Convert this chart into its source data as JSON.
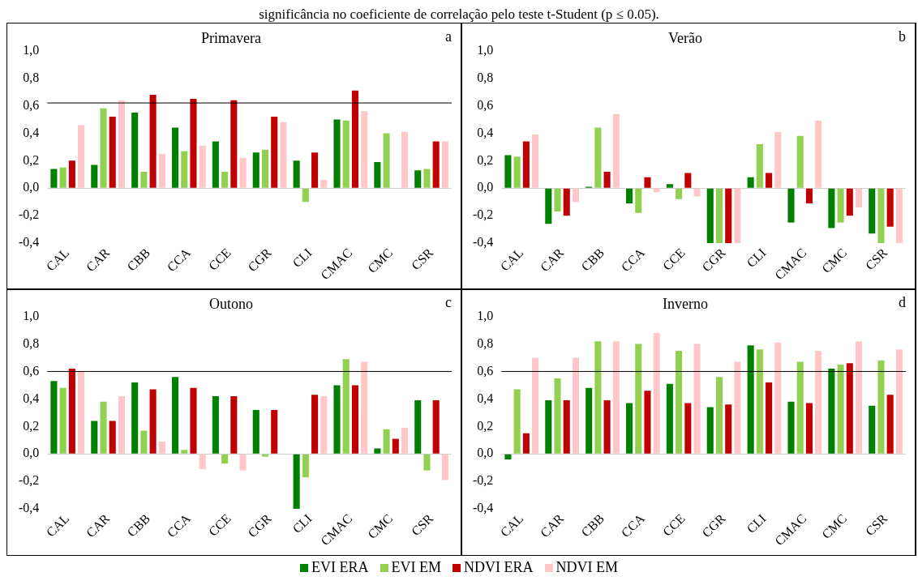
{
  "chart_data": [
    {
      "type": "bar",
      "title": "Primavera",
      "annotations": [
        "a",
        "significância no coeficiente de correlação pelo teste t-Student (p ≤ 0.05)."
      ],
      "categories": [
        "CAL",
        "CAR",
        "CBB",
        "CCA",
        "CCE",
        "CGR",
        "CLI",
        "CMAC",
        "CMC",
        "CSR"
      ],
      "series": [
        {
          "name": "EVI ERA",
          "color": "#008000",
          "values": [
            0.14,
            0.17,
            0.55,
            0.44,
            0.34,
            0.26,
            0.2,
            0.5,
            0.19,
            0.13
          ]
        },
        {
          "name": "EVI EM",
          "color": "#92d050",
          "values": [
            0.15,
            0.58,
            0.12,
            0.27,
            0.12,
            0.28,
            -0.1,
            0.49,
            0.4,
            0.14
          ]
        },
        {
          "name": "NDVI ERA",
          "color": "#c00000",
          "values": [
            0.2,
            0.52,
            0.68,
            0.65,
            0.64,
            0.52,
            0.26,
            0.71,
            null,
            0.34
          ]
        },
        {
          "name": "NDVI EM",
          "color": "#ffc7c7",
          "values": [
            0.46,
            0.64,
            0.25,
            0.31,
            0.22,
            0.48,
            0.06,
            0.56,
            0.41,
            0.34
          ]
        }
      ],
      "ylim": [
        -0.4,
        1.0
      ],
      "yticks": [
        {
          "value": -0.4,
          "label": "-0,4"
        },
        {
          "value": -0.2,
          "label": "-0,2"
        },
        {
          "value": 0,
          "label": "0,0"
        },
        {
          "value": 0.2,
          "label": "0,2"
        },
        {
          "value": 0.4,
          "label": "0,4"
        },
        {
          "value": 0.6,
          "label": "0,6"
        },
        {
          "value": 0.8,
          "label": "0,8"
        },
        {
          "value": 1.0,
          "label": "1,0"
        }
      ],
      "ref_lines": [
        {
          "axis": "y",
          "value": 0.62,
          "color": "#000000"
        }
      ],
      "legend": "bottom"
    },
    {
      "type": "bar",
      "title": "Verão",
      "annotations": [
        "b"
      ],
      "categories": [
        "CAL",
        "CAR",
        "CBB",
        "CCA",
        "CCE",
        "CGR",
        "CLI",
        "CMAC",
        "CMC",
        "CSR"
      ],
      "series": [
        {
          "color": "#008000",
          "values": [
            0.24,
            -0.26,
            0.01,
            -0.11,
            0.03,
            -0.4,
            0.08,
            -0.25,
            -0.29,
            -0.33
          ]
        },
        {
          "color": "#92d050",
          "values": [
            0.23,
            -0.17,
            0.44,
            -0.18,
            -0.08,
            -0.4,
            0.32,
            0.38,
            -0.25,
            -0.4
          ]
        },
        {
          "color": "#c00000",
          "values": [
            0.34,
            -0.2,
            0.12,
            0.08,
            0.11,
            -0.4,
            0.11,
            -0.11,
            -0.2,
            -0.28
          ]
        },
        {
          "color": "#ffc7c7",
          "values": [
            0.39,
            -0.1,
            0.54,
            -0.03,
            -0.06,
            -0.4,
            0.41,
            0.49,
            -0.14,
            -0.4
          ]
        }
      ],
      "ylim": [
        -0.4,
        1.0
      ],
      "yticks": [
        {
          "value": -0.4,
          "label": "-0,4"
        },
        {
          "value": -0.2,
          "label": "-0,2"
        },
        {
          "value": 0,
          "label": "0,0"
        },
        {
          "value": 0.2,
          "label": "0,2"
        },
        {
          "value": 0.4,
          "label": "0,4"
        },
        {
          "value": 0.6,
          "label": "0,6"
        },
        {
          "value": 0.8,
          "label": "0,8"
        },
        {
          "value": 1.0,
          "label": "1,0"
        }
      ]
    },
    {
      "type": "bar",
      "title": "Outono",
      "annotations": [
        "c"
      ],
      "categories": [
        "CAL",
        "CAR",
        "CBB",
        "CCA",
        "CCE",
        "CGR",
        "CLI",
        "CMAC",
        "CMC",
        "CSR"
      ],
      "series": [
        {
          "color": "#008000",
          "values": [
            0.53,
            0.24,
            0.52,
            0.56,
            0.42,
            0.32,
            -0.4,
            0.5,
            0.04,
            0.39
          ]
        },
        {
          "color": "#92d050",
          "values": [
            0.48,
            0.38,
            0.17,
            0.03,
            -0.07,
            -0.02,
            -0.17,
            0.69,
            0.18,
            -0.12
          ]
        },
        {
          "color": "#c00000",
          "values": [
            0.62,
            0.24,
            0.47,
            0.48,
            0.42,
            0.32,
            0.43,
            0.5,
            0.11,
            0.39
          ]
        },
        {
          "color": "#ffc7c7",
          "values": [
            0.6,
            0.42,
            0.09,
            -0.11,
            -0.12,
            null,
            0.42,
            0.67,
            0.19,
            -0.19
          ]
        }
      ],
      "ylim": [
        -0.4,
        1.0
      ],
      "yticks": [
        {
          "value": -0.4,
          "label": "-0,4"
        },
        {
          "value": -0.2,
          "label": "-0,2"
        },
        {
          "value": 0,
          "label": "0,0"
        },
        {
          "value": 0.2,
          "label": "0,2"
        },
        {
          "value": 0.4,
          "label": "0,4"
        },
        {
          "value": 0.6,
          "label": "0,6"
        },
        {
          "value": 0.8,
          "label": "0,8"
        },
        {
          "value": 1.0,
          "label": "1,0"
        }
      ],
      "ref_lines": [
        {
          "axis": "y",
          "value": 0.6,
          "color": "#000000"
        }
      ]
    },
    {
      "type": "bar",
      "title": "Inverno",
      "annotations": [
        "d"
      ],
      "categories": [
        "CAL",
        "CAR",
        "CBB",
        "CCA",
        "CCE",
        "CGR",
        "CLI",
        "CMAC",
        "CMC",
        "CSR"
      ],
      "series": [
        {
          "color": "#008000",
          "values": [
            -0.04,
            0.39,
            0.48,
            0.37,
            0.51,
            0.34,
            0.79,
            0.38,
            0.62,
            0.35
          ]
        },
        {
          "color": "#92d050",
          "values": [
            0.47,
            0.55,
            0.82,
            0.8,
            0.75,
            0.56,
            0.76,
            0.67,
            0.65,
            0.68
          ]
        },
        {
          "color": "#c00000",
          "values": [
            0.15,
            0.39,
            0.39,
            0.46,
            0.37,
            0.36,
            0.52,
            0.37,
            0.66,
            0.43
          ]
        },
        {
          "color": "#ffc7c7",
          "values": [
            0.7,
            0.7,
            0.82,
            0.88,
            0.8,
            0.67,
            0.81,
            0.75,
            0.82,
            0.76
          ]
        }
      ],
      "ylim": [
        -0.4,
        1.0
      ],
      "yticks": [
        {
          "value": -0.4,
          "label": "-0,4"
        },
        {
          "value": -0.2,
          "label": "-0,2"
        },
        {
          "value": 0,
          "label": "0,0"
        },
        {
          "value": 0.2,
          "label": "0,2"
        },
        {
          "value": 0.4,
          "label": "0,4"
        },
        {
          "value": 0.6,
          "label": "0,6"
        },
        {
          "value": 0.8,
          "label": "0,8"
        },
        {
          "value": 1.0,
          "label": "1,0"
        }
      ],
      "ref_lines": [
        {
          "axis": "y",
          "value": 0.6,
          "color": "#000000"
        }
      ]
    }
  ]
}
